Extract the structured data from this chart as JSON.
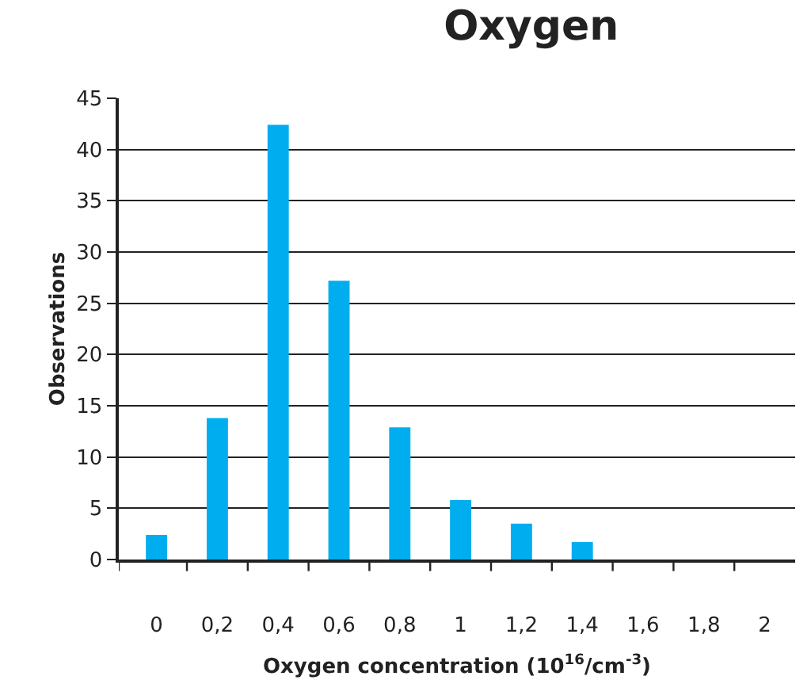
{
  "chart_data": {
    "type": "bar",
    "title": "Oxygen",
    "xlabel": "Oxygen concentration (10$^{16}$/cm$^{-3}$)",
    "ylabel": "Observations",
    "categories": [
      "0",
      "0,2",
      "0,4",
      "0,6",
      "0,8",
      "1",
      "1,2",
      "1,4",
      "1,6",
      "1,8",
      "2"
    ],
    "values": [
      2.4,
      13.8,
      42.4,
      27.2,
      12.9,
      5.8,
      3.5,
      1.7,
      0,
      0,
      0
    ],
    "color": "#00aeef",
    "ylim": [
      0,
      45
    ],
    "yticks": [
      0,
      5,
      10,
      15,
      20,
      25,
      30,
      35,
      40,
      45
    ],
    "grid": "y"
  }
}
